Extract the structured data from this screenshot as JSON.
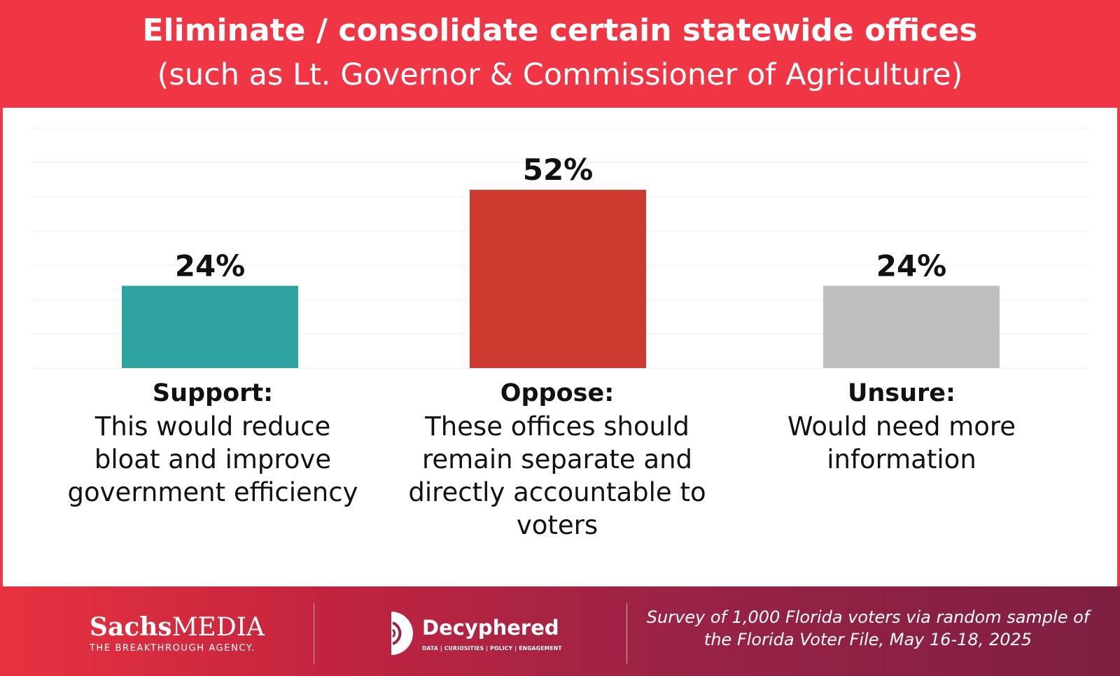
{
  "header": {
    "title_line1": "Eliminate / consolidate certain statewide offices",
    "title_line2": "(such as Lt. Governor & Commissioner of Agriculture)"
  },
  "chart_data": {
    "type": "bar",
    "title": "Eliminate / consolidate certain statewide offices (such as Lt. Governor & Commissioner of Agriculture)",
    "categories": [
      "Support:",
      "Oppose:",
      "Unsure:"
    ],
    "descriptions": [
      "This would reduce bloat and improve government efficiency",
      "These offices should remain separate and directly accountable to voters",
      "Would need more information"
    ],
    "values": [
      24,
      52,
      24
    ],
    "value_labels": [
      "24%",
      "52%",
      "24%"
    ],
    "colors": [
      "#2fa39f",
      "#cc3a2f",
      "#bfbfbf"
    ],
    "ylim": [
      0,
      70
    ],
    "gridlines": true,
    "xlabel": "",
    "ylabel": ""
  },
  "footer": {
    "sachs": {
      "brand_bold": "Sachs",
      "brand_rest": "MEDIA",
      "tagline": "THE BREAKTHROUGH AGENCY."
    },
    "decyphered": {
      "name": "Decyphered",
      "tagline": "DATA | CURIOSITIES | POLICY | ENGAGEMENT"
    },
    "source": "Survey of 1,000 Florida voters via random sample of the Florida Voter File, May 16-18, 2025"
  }
}
